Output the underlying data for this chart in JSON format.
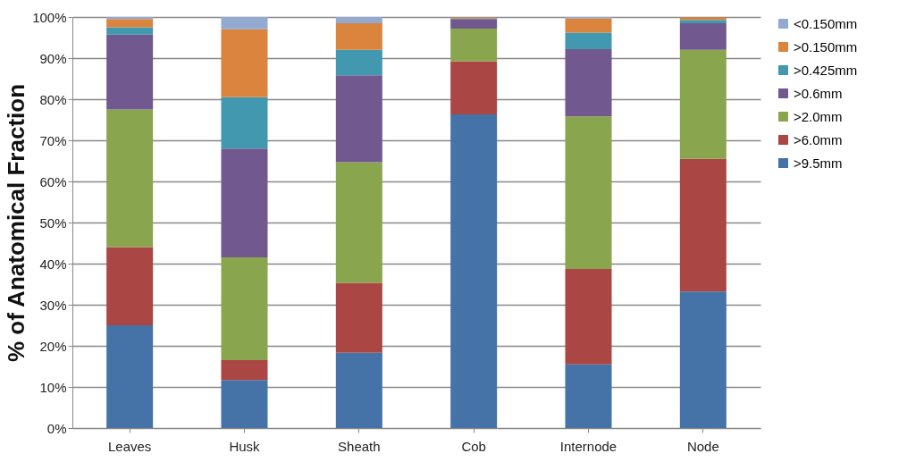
{
  "chart_data": {
    "type": "bar",
    "stacked": true,
    "ylabel": "% of Anatomical Fraction",
    "categories": [
      "Leaves",
      "Husk",
      "Sheath",
      "Cob",
      "Internode",
      "Node"
    ],
    "series": [
      {
        "name": ">9.5mm",
        "color": "#4572a7",
        "values": [
          25,
          11.7,
          18.3,
          76.3,
          15.5,
          33.2
        ]
      },
      {
        "name": ">6.0mm",
        "color": "#aa4643",
        "values": [
          19,
          4.8,
          17,
          12.9,
          23.2,
          32.3
        ]
      },
      {
        "name": ">2.0mm",
        "color": "#89a54e",
        "values": [
          33.5,
          25,
          29.4,
          8,
          37.1,
          26.5
        ]
      },
      {
        "name": ">0.6mm",
        "color": "#71588f",
        "values": [
          18.2,
          26.5,
          21.1,
          2.3,
          16.4,
          6.5
        ]
      },
      {
        "name": ">0.425mm",
        "color": "#4198af",
        "values": [
          1.8,
          12.5,
          6.2,
          0.2,
          4,
          0.8
        ]
      },
      {
        "name": ">0.150mm",
        "color": "#db843d",
        "values": [
          2,
          16.5,
          6.5,
          0.2,
          3.5,
          0.6
        ]
      },
      {
        "name": "<0.150mm",
        "color": "#93a9cf",
        "values": [
          0.5,
          3,
          1.5,
          null,
          0.3,
          null
        ]
      }
    ],
    "ylim": [
      0,
      100
    ],
    "yticks": [
      {
        "value": 0,
        "label": "0%"
      },
      {
        "value": 10,
        "label": "10%"
      },
      {
        "value": 20,
        "label": "20%"
      },
      {
        "value": 30,
        "label": "30%"
      },
      {
        "value": 40,
        "label": "40%"
      },
      {
        "value": 50,
        "label": "50%"
      },
      {
        "value": 60,
        "label": "60%"
      },
      {
        "value": 70,
        "label": "70%"
      },
      {
        "value": 80,
        "label": "80%"
      },
      {
        "value": 90,
        "label": "90%"
      },
      {
        "value": 100,
        "label": "100%"
      }
    ],
    "grid": "y",
    "legend": "right"
  }
}
